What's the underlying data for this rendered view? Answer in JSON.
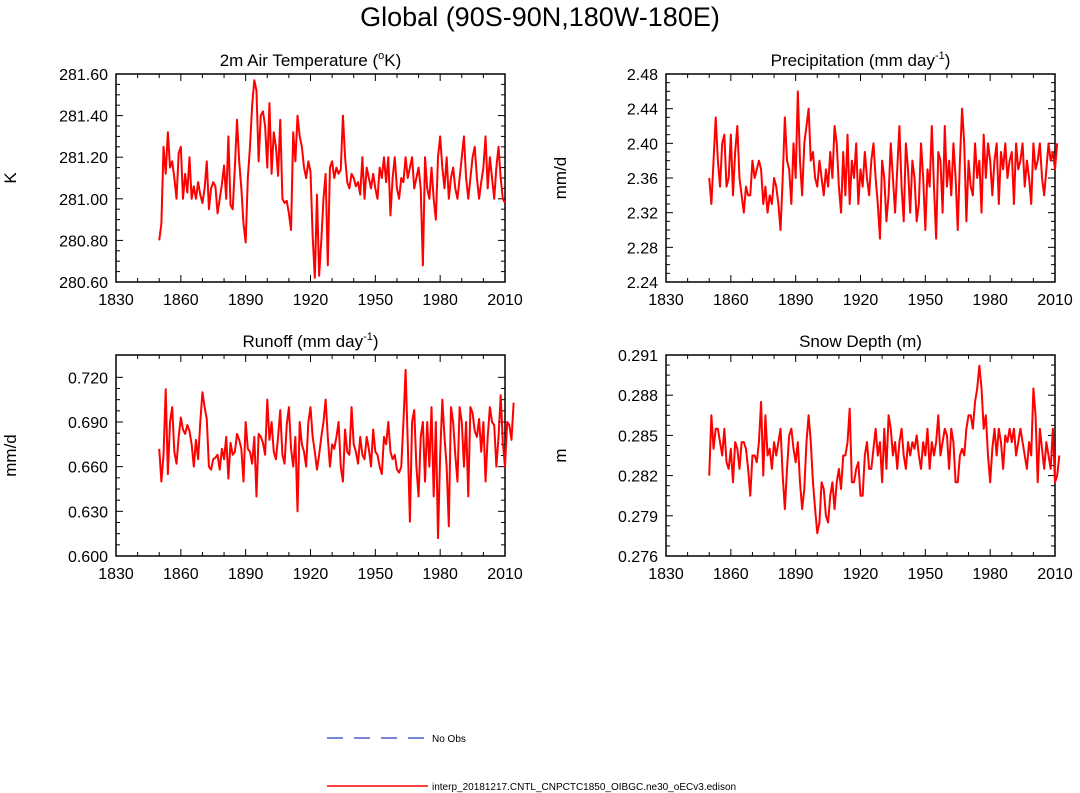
{
  "figure_title": "Global (90S-90N,180W-180E)",
  "colors": {
    "model": "#ff0000",
    "obs": "#4a5bd0",
    "axes": "#000000"
  },
  "legend": {
    "obs_label": "No Obs",
    "model_label": "interp_20181217.CNTL_CNPCTC1850_OIBGC.ne30_oECv3.edison"
  },
  "chart_data": [
    {
      "type": "line",
      "title": "2m Air Temperature (oK)",
      "title_parts": {
        "pre": "2m Air Temperature (",
        "sup": "o",
        "post": "K)"
      },
      "xlabel": "",
      "ylabel": "K",
      "xlim": [
        1830,
        2010
      ],
      "ylim": [
        280.6,
        281.6
      ],
      "xticks": [
        1830,
        1860,
        1890,
        1920,
        1950,
        1980,
        2010
      ],
      "yticks": [
        280.6,
        280.8,
        281.0,
        281.2,
        281.4,
        281.6
      ],
      "ytick_labels": [
        "280.60",
        "280.80",
        "281.00",
        "281.20",
        "281.40",
        "281.60"
      ],
      "x_start": 1850,
      "series": [
        {
          "name": "interp_20181217.CNTL_CNPCTC1850_OIBGC.ne30_oECv3.edison",
          "values": [
            280.8,
            280.88,
            281.25,
            281.12,
            281.32,
            281.15,
            281.18,
            281.1,
            281.0,
            281.22,
            281.25,
            281.0,
            281.12,
            281.03,
            281.2,
            281.0,
            281.06,
            281.0,
            281.08,
            281.02,
            280.98,
            281.05,
            281.18,
            280.95,
            281.05,
            281.08,
            281.06,
            280.93,
            281.0,
            281.07,
            281.16,
            281.0,
            281.3,
            280.97,
            280.95,
            281.15,
            281.38,
            281.18,
            281.05,
            280.88,
            280.79,
            281.1,
            281.25,
            281.45,
            281.57,
            281.52,
            281.18,
            281.4,
            281.42,
            281.35,
            281.15,
            281.46,
            281.12,
            281.32,
            281.25,
            281.11,
            281.38,
            281.0,
            280.98,
            280.99,
            280.93,
            280.85,
            281.32,
            281.18,
            281.4,
            281.3,
            281.25,
            281.15,
            281.1,
            281.18,
            281.13,
            280.82,
            280.62,
            281.02,
            280.63,
            280.8,
            281.0,
            281.12,
            280.68,
            281.15,
            281.18,
            281.1,
            281.15,
            281.12,
            281.14,
            281.4,
            281.2,
            281.08,
            281.05,
            281.12,
            281.1,
            281.06,
            281.08,
            281.02,
            281.2,
            281.0,
            281.15,
            281.1,
            281.05,
            281.12,
            281.05,
            281.0,
            281.15,
            281.1,
            281.2,
            281.08,
            281.2,
            280.92,
            281.1,
            281.2,
            281.05,
            281.0,
            281.1,
            281.08,
            281.2,
            281.1,
            281.15,
            281.2,
            281.05,
            281.1,
            281.15,
            281.05,
            280.68,
            281.2,
            281.05,
            281.0,
            281.15,
            281.0,
            280.9,
            281.2,
            281.3,
            281.15,
            281.05,
            281.2,
            281.0,
            281.1,
            281.15,
            281.05,
            281.0,
            281.1,
            281.2,
            281.3,
            281.1,
            281.0,
            281.1,
            281.2,
            281.25,
            281.1,
            281.0,
            281.08,
            281.15,
            281.3,
            281.05,
            281.2,
            281.1,
            281.0,
            281.15,
            281.25,
            281.1,
            281.0,
            280.98
          ]
        }
      ]
    },
    {
      "type": "line",
      "title": "Precipitation (mm day-1)",
      "title_parts": {
        "pre": "Precipitation (mm day",
        "sup": "-1",
        "post": ")"
      },
      "xlabel": "",
      "ylabel": "mm/d",
      "xlim": [
        1830,
        2010
      ],
      "ylim": [
        2.24,
        2.48
      ],
      "xticks": [
        1830,
        1860,
        1890,
        1920,
        1950,
        1980,
        2010
      ],
      "yticks": [
        2.24,
        2.28,
        2.32,
        2.36,
        2.4,
        2.44,
        2.48
      ],
      "ytick_labels": [
        "2.24",
        "2.28",
        "2.32",
        "2.36",
        "2.40",
        "2.44",
        "2.48"
      ],
      "x_start": 1850,
      "series": [
        {
          "name": "interp_20181217.CNTL_CNPCTC1850_OIBGC.ne30_oECv3.edison",
          "values": [
            2.36,
            2.33,
            2.38,
            2.43,
            2.38,
            2.35,
            2.4,
            2.41,
            2.35,
            2.36,
            2.41,
            2.34,
            2.39,
            2.42,
            2.36,
            2.34,
            2.32,
            2.35,
            2.34,
            2.34,
            2.38,
            2.36,
            2.37,
            2.38,
            2.37,
            2.33,
            2.35,
            2.32,
            2.34,
            2.33,
            2.36,
            2.35,
            2.33,
            2.3,
            2.36,
            2.43,
            2.38,
            2.37,
            2.33,
            2.4,
            2.36,
            2.46,
            2.38,
            2.34,
            2.4,
            2.42,
            2.44,
            2.38,
            2.39,
            2.36,
            2.35,
            2.38,
            2.36,
            2.34,
            2.37,
            2.35,
            2.39,
            2.36,
            2.42,
            2.4,
            2.35,
            2.32,
            2.39,
            2.34,
            2.41,
            2.33,
            2.38,
            2.36,
            2.4,
            2.33,
            2.37,
            2.35,
            2.39,
            2.36,
            2.34,
            2.38,
            2.4,
            2.36,
            2.33,
            2.29,
            2.38,
            2.36,
            2.31,
            2.34,
            2.4,
            2.36,
            2.32,
            2.37,
            2.42,
            2.35,
            2.31,
            2.4,
            2.37,
            2.32,
            2.38,
            2.36,
            2.31,
            2.33,
            2.4,
            2.36,
            2.3,
            2.37,
            2.35,
            2.42,
            2.35,
            2.29,
            2.39,
            2.38,
            2.32,
            2.42,
            2.35,
            2.38,
            2.34,
            2.4,
            2.36,
            2.3,
            2.38,
            2.44,
            2.4,
            2.31,
            2.38,
            2.35,
            2.34,
            2.4,
            2.36,
            2.38,
            2.32,
            2.41,
            2.36,
            2.4,
            2.38,
            2.34,
            2.38,
            2.4,
            2.33,
            2.39,
            2.37,
            2.4,
            2.36,
            2.38,
            2.39,
            2.33,
            2.4,
            2.37,
            2.38,
            2.4,
            2.35,
            2.38,
            2.36,
            2.33,
            2.4,
            2.37,
            2.38,
            2.4,
            2.36,
            2.34,
            2.37,
            2.4,
            2.38,
            2.39,
            2.37,
            2.4
          ]
        }
      ]
    },
    {
      "type": "line",
      "title": "Runoff (mm day-1)",
      "title_parts": {
        "pre": "Runoff (mm day",
        "sup": "-1",
        "post": ")"
      },
      "xlabel": "",
      "ylabel": "mm/d",
      "xlim": [
        1830,
        2010
      ],
      "ylim": [
        0.6,
        0.735
      ],
      "xticks": [
        1830,
        1860,
        1890,
        1920,
        1950,
        1980,
        2010
      ],
      "yticks": [
        0.6,
        0.63,
        0.66,
        0.69,
        0.72
      ],
      "ytick_labels": [
        "0.600",
        "0.630",
        "0.660",
        "0.690",
        "0.720"
      ],
      "x_start": 1850,
      "series": [
        {
          "name": "interp_20181217.CNTL_CNPCTC1850_OIBGC.ne30_oECv3.edison",
          "values": [
            0.672,
            0.65,
            0.668,
            0.712,
            0.655,
            0.69,
            0.7,
            0.67,
            0.662,
            0.68,
            0.693,
            0.685,
            0.682,
            0.688,
            0.684,
            0.675,
            0.66,
            0.678,
            0.665,
            0.69,
            0.71,
            0.7,
            0.692,
            0.66,
            0.658,
            0.665,
            0.666,
            0.668,
            0.658,
            0.672,
            0.665,
            0.68,
            0.652,
            0.676,
            0.668,
            0.67,
            0.682,
            0.678,
            0.672,
            0.65,
            0.69,
            0.672,
            0.67,
            0.662,
            0.68,
            0.64,
            0.682,
            0.68,
            0.676,
            0.668,
            0.705,
            0.678,
            0.69,
            0.67,
            0.665,
            0.68,
            0.698,
            0.668,
            0.662,
            0.688,
            0.7,
            0.672,
            0.66,
            0.68,
            0.63,
            0.69,
            0.675,
            0.67,
            0.66,
            0.69,
            0.7,
            0.68,
            0.67,
            0.658,
            0.668,
            0.68,
            0.69,
            0.705,
            0.68,
            0.66,
            0.675,
            0.672,
            0.68,
            0.69,
            0.66,
            0.65,
            0.685,
            0.67,
            0.668,
            0.7,
            0.675,
            0.67,
            0.662,
            0.68,
            0.668,
            0.665,
            0.68,
            0.672,
            0.66,
            0.685,
            0.67,
            0.668,
            0.66,
            0.655,
            0.68,
            0.675,
            0.69,
            0.67,
            0.665,
            0.668,
            0.658,
            0.656,
            0.66,
            0.69,
            0.725,
            0.676,
            0.623,
            0.69,
            0.698,
            0.66,
            0.64,
            0.68,
            0.69,
            0.65,
            0.69,
            0.66,
            0.7,
            0.64,
            0.69,
            0.612,
            0.668,
            0.705,
            0.68,
            0.66,
            0.62,
            0.7,
            0.69,
            0.668,
            0.65,
            0.7,
            0.69,
            0.66,
            0.69,
            0.64,
            0.7,
            0.696,
            0.684,
            0.68,
            0.692,
            0.67,
            0.69,
            0.65,
            0.68,
            0.7,
            0.69,
            0.688,
            0.66,
            0.68,
            0.708,
            0.676,
            0.66,
            0.69,
            0.688,
            0.678,
            0.703
          ]
        }
      ]
    },
    {
      "type": "line",
      "title": "Snow Depth (m)",
      "title_parts": {
        "pre": "Snow Depth (m)",
        "sup": "",
        "post": ""
      },
      "xlabel": "",
      "ylabel": "m",
      "xlim": [
        1830,
        2010
      ],
      "ylim": [
        0.276,
        0.291
      ],
      "xticks": [
        1830,
        1860,
        1890,
        1920,
        1950,
        1980,
        2010
      ],
      "yticks": [
        0.276,
        0.279,
        0.282,
        0.285,
        0.288,
        0.291
      ],
      "ytick_labels": [
        "0.276",
        "0.279",
        "0.282",
        "0.285",
        "0.288",
        "0.291"
      ],
      "x_start": 1850,
      "series": [
        {
          "name": "interp_20181217.CNTL_CNPCTC1850_OIBGC.ne30_oECv3.edison",
          "values": [
            0.282,
            0.2865,
            0.284,
            0.2855,
            0.2855,
            0.2845,
            0.2835,
            0.2855,
            0.283,
            0.2825,
            0.284,
            0.2815,
            0.2845,
            0.284,
            0.2825,
            0.2845,
            0.2845,
            0.284,
            0.2825,
            0.2805,
            0.2835,
            0.2835,
            0.283,
            0.2845,
            0.2875,
            0.282,
            0.2865,
            0.2835,
            0.284,
            0.2825,
            0.2845,
            0.2835,
            0.2845,
            0.2855,
            0.282,
            0.2795,
            0.2825,
            0.285,
            0.2855,
            0.284,
            0.283,
            0.2845,
            0.2815,
            0.2795,
            0.281,
            0.2845,
            0.2865,
            0.2845,
            0.2815,
            0.2795,
            0.2777,
            0.2785,
            0.2815,
            0.281,
            0.279,
            0.2785,
            0.2805,
            0.2815,
            0.2795,
            0.2815,
            0.2825,
            0.281,
            0.2835,
            0.2835,
            0.2845,
            0.287,
            0.2815,
            0.2815,
            0.2825,
            0.283,
            0.2805,
            0.2805,
            0.2835,
            0.2845,
            0.2825,
            0.2825,
            0.284,
            0.2855,
            0.2835,
            0.2845,
            0.2815,
            0.2855,
            0.2825,
            0.2865,
            0.2855,
            0.2835,
            0.2845,
            0.2825,
            0.2845,
            0.2855,
            0.2835,
            0.2825,
            0.2845,
            0.2835,
            0.2845,
            0.284,
            0.285,
            0.2835,
            0.2825,
            0.2845,
            0.2835,
            0.2855,
            0.2825,
            0.2845,
            0.2835,
            0.2845,
            0.2865,
            0.2835,
            0.2845,
            0.2855,
            0.285,
            0.2825,
            0.2855,
            0.2845,
            0.2815,
            0.2815,
            0.2835,
            0.284,
            0.2835,
            0.2855,
            0.2865,
            0.2865,
            0.2855,
            0.2875,
            0.2885,
            0.2902,
            0.2885,
            0.2855,
            0.2865,
            0.2835,
            0.2815,
            0.284,
            0.2855,
            0.2835,
            0.2855,
            0.2845,
            0.2825,
            0.285,
            0.2845,
            0.2855,
            0.2845,
            0.2855,
            0.2835,
            0.2845,
            0.2855,
            0.2845,
            0.2835,
            0.2825,
            0.2845,
            0.2835,
            0.2885,
            0.2865,
            0.2815,
            0.2855,
            0.284,
            0.2825,
            0.2845,
            0.2835,
            0.2825,
            0.2855,
            0.2815,
            0.282,
            0.2835
          ]
        }
      ]
    }
  ]
}
